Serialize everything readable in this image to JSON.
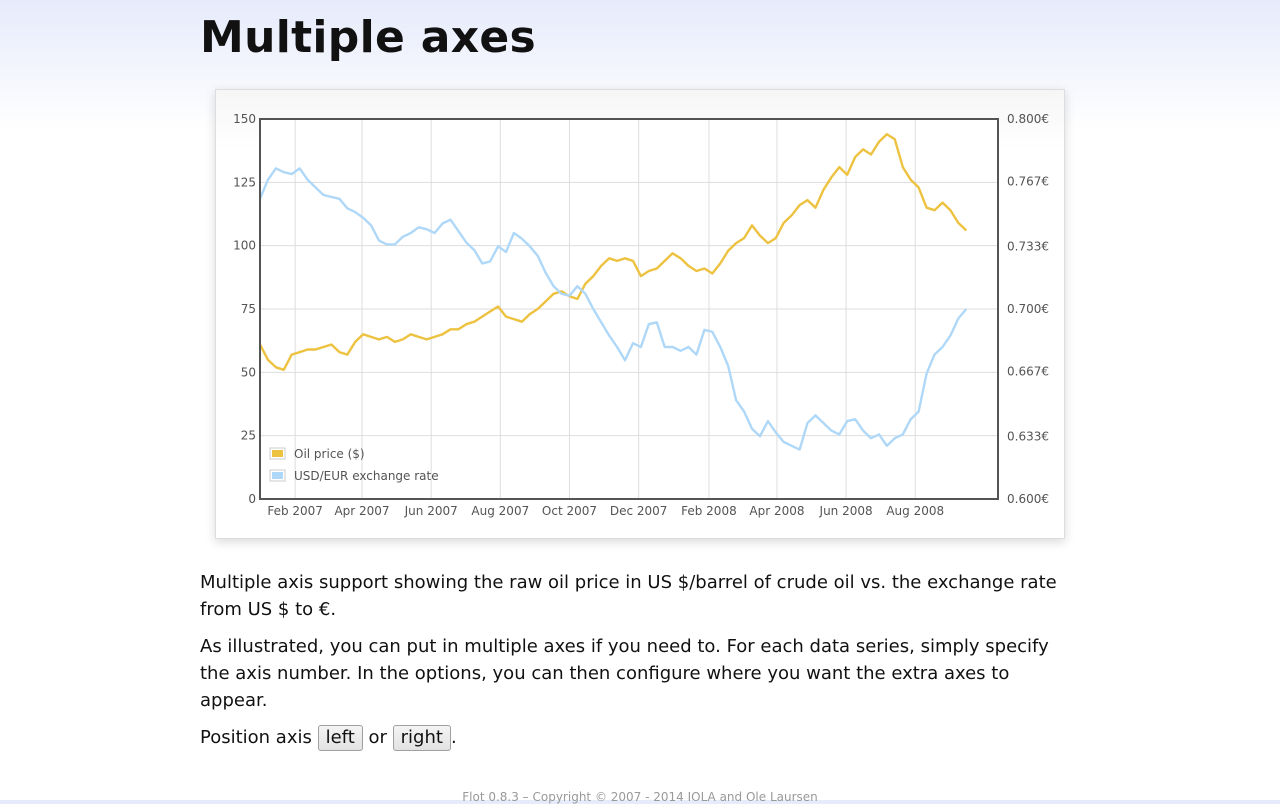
{
  "page": {
    "title": "Multiple axes",
    "para1": "Multiple axis support showing the raw oil price in US $/barrel of crude oil vs. the exchange rate from US $ to €.",
    "para2": "As illustrated, you can put in multiple axes if you need to. For each data series, simply specify the axis number. In the options, you can then configure where you want the extra axes to appear.",
    "position_prefix": "Position axis",
    "left_button": "left",
    "or_text": "or",
    "right_button": "right",
    "position_suffix": ".",
    "footer": "Flot 0.8.3 – Copyright © 2007 - 2014 IOLA and Ole Laursen"
  },
  "chart_data": {
    "type": "line",
    "x_type": "date",
    "xlim": [
      "2007-01-01",
      "2008-10-13"
    ],
    "x_ticks": [
      "2007-02-01",
      "2007-04-01",
      "2007-06-01",
      "2007-08-01",
      "2007-10-01",
      "2007-12-01",
      "2008-02-01",
      "2008-04-01",
      "2008-06-01",
      "2008-08-01"
    ],
    "x_tick_labels": [
      "Feb 2007",
      "Apr 2007",
      "Jun 2007",
      "Aug 2007",
      "Oct 2007",
      "Dec 2007",
      "Feb 2008",
      "Apr 2008",
      "Jun 2008",
      "Aug 2008"
    ],
    "y_left": {
      "min": 0,
      "max": 150,
      "ticks": [
        0,
        25,
        50,
        75,
        100,
        125,
        150
      ]
    },
    "y_right": {
      "min": 0.6,
      "max": 0.8,
      "ticks": [
        0.6,
        0.633,
        0.667,
        0.7,
        0.733,
        0.767,
        0.8
      ],
      "tick_labels": [
        "0.600€",
        "0.633€",
        "0.667€",
        "0.700€",
        "0.733€",
        "0.767€",
        "0.800€"
      ]
    },
    "grid": true,
    "legend_position": "bottom-left",
    "series": [
      {
        "name": "Oil price ($)",
        "color": "#edc240",
        "axis": "left",
        "points": [
          [
            "2007-01-01",
            61
          ],
          [
            "2007-01-08",
            55
          ],
          [
            "2007-01-15",
            52
          ],
          [
            "2007-01-22",
            51
          ],
          [
            "2007-01-29",
            57
          ],
          [
            "2007-02-05",
            58
          ],
          [
            "2007-02-12",
            59
          ],
          [
            "2007-02-19",
            59
          ],
          [
            "2007-02-26",
            60
          ],
          [
            "2007-03-05",
            61
          ],
          [
            "2007-03-12",
            58
          ],
          [
            "2007-03-19",
            57
          ],
          [
            "2007-03-26",
            62
          ],
          [
            "2007-04-02",
            65
          ],
          [
            "2007-04-09",
            64
          ],
          [
            "2007-04-16",
            63
          ],
          [
            "2007-04-23",
            64
          ],
          [
            "2007-04-30",
            62
          ],
          [
            "2007-05-07",
            63
          ],
          [
            "2007-05-14",
            65
          ],
          [
            "2007-05-21",
            64
          ],
          [
            "2007-05-28",
            63
          ],
          [
            "2007-06-04",
            64
          ],
          [
            "2007-06-11",
            65
          ],
          [
            "2007-06-18",
            67
          ],
          [
            "2007-06-25",
            67
          ],
          [
            "2007-07-02",
            69
          ],
          [
            "2007-07-09",
            70
          ],
          [
            "2007-07-16",
            72
          ],
          [
            "2007-07-23",
            74
          ],
          [
            "2007-07-30",
            76
          ],
          [
            "2007-08-06",
            72
          ],
          [
            "2007-08-13",
            71
          ],
          [
            "2007-08-20",
            70
          ],
          [
            "2007-08-27",
            73
          ],
          [
            "2007-09-03",
            75
          ],
          [
            "2007-09-10",
            78
          ],
          [
            "2007-09-17",
            81
          ],
          [
            "2007-09-24",
            82
          ],
          [
            "2007-10-01",
            80
          ],
          [
            "2007-10-08",
            79
          ],
          [
            "2007-10-15",
            85
          ],
          [
            "2007-10-22",
            88
          ],
          [
            "2007-10-29",
            92
          ],
          [
            "2007-11-05",
            95
          ],
          [
            "2007-11-12",
            94
          ],
          [
            "2007-11-19",
            95
          ],
          [
            "2007-11-26",
            94
          ],
          [
            "2007-12-03",
            88
          ],
          [
            "2007-12-10",
            90
          ],
          [
            "2007-12-17",
            91
          ],
          [
            "2007-12-24",
            94
          ],
          [
            "2007-12-31",
            97
          ],
          [
            "2008-01-07",
            95
          ],
          [
            "2008-01-14",
            92
          ],
          [
            "2008-01-21",
            90
          ],
          [
            "2008-01-28",
            91
          ],
          [
            "2008-02-04",
            89
          ],
          [
            "2008-02-11",
            93
          ],
          [
            "2008-02-18",
            98
          ],
          [
            "2008-02-25",
            101
          ],
          [
            "2008-03-03",
            103
          ],
          [
            "2008-03-10",
            108
          ],
          [
            "2008-03-17",
            104
          ],
          [
            "2008-03-24",
            101
          ],
          [
            "2008-03-31",
            103
          ],
          [
            "2008-04-07",
            109
          ],
          [
            "2008-04-14",
            112
          ],
          [
            "2008-04-21",
            116
          ],
          [
            "2008-04-28",
            118
          ],
          [
            "2008-05-05",
            115
          ],
          [
            "2008-05-12",
            122
          ],
          [
            "2008-05-19",
            127
          ],
          [
            "2008-05-26",
            131
          ],
          [
            "2008-06-02",
            128
          ],
          [
            "2008-06-09",
            135
          ],
          [
            "2008-06-16",
            138
          ],
          [
            "2008-06-23",
            136
          ],
          [
            "2008-06-30",
            141
          ],
          [
            "2008-07-07",
            144
          ],
          [
            "2008-07-14",
            142
          ],
          [
            "2008-07-21",
            131
          ],
          [
            "2008-07-28",
            126
          ],
          [
            "2008-08-04",
            123
          ],
          [
            "2008-08-11",
            115
          ],
          [
            "2008-08-18",
            114
          ],
          [
            "2008-08-25",
            117
          ],
          [
            "2008-09-01",
            114
          ],
          [
            "2008-09-08",
            109
          ],
          [
            "2008-09-15",
            106
          ]
        ]
      },
      {
        "name": "USD/EUR exchange rate",
        "color": "#afd8f8",
        "axis": "right",
        "points": [
          [
            "2007-01-01",
            0.758
          ],
          [
            "2007-01-08",
            0.768
          ],
          [
            "2007-01-15",
            0.774
          ],
          [
            "2007-01-22",
            0.772
          ],
          [
            "2007-01-29",
            0.771
          ],
          [
            "2007-02-05",
            0.774
          ],
          [
            "2007-02-12",
            0.768
          ],
          [
            "2007-02-19",
            0.764
          ],
          [
            "2007-02-26",
            0.76
          ],
          [
            "2007-03-05",
            0.759
          ],
          [
            "2007-03-12",
            0.758
          ],
          [
            "2007-03-19",
            0.753
          ],
          [
            "2007-03-26",
            0.751
          ],
          [
            "2007-04-02",
            0.748
          ],
          [
            "2007-04-09",
            0.744
          ],
          [
            "2007-04-16",
            0.736
          ],
          [
            "2007-04-23",
            0.734
          ],
          [
            "2007-04-30",
            0.734
          ],
          [
            "2007-05-07",
            0.738
          ],
          [
            "2007-05-14",
            0.74
          ],
          [
            "2007-05-21",
            0.743
          ],
          [
            "2007-05-28",
            0.742
          ],
          [
            "2007-06-04",
            0.74
          ],
          [
            "2007-06-11",
            0.745
          ],
          [
            "2007-06-18",
            0.747
          ],
          [
            "2007-06-25",
            0.741
          ],
          [
            "2007-07-02",
            0.735
          ],
          [
            "2007-07-09",
            0.731
          ],
          [
            "2007-07-16",
            0.724
          ],
          [
            "2007-07-23",
            0.725
          ],
          [
            "2007-07-30",
            0.733
          ],
          [
            "2007-08-06",
            0.73
          ],
          [
            "2007-08-13",
            0.74
          ],
          [
            "2007-08-20",
            0.737
          ],
          [
            "2007-08-27",
            0.733
          ],
          [
            "2007-09-03",
            0.728
          ],
          [
            "2007-09-10",
            0.719
          ],
          [
            "2007-09-17",
            0.712
          ],
          [
            "2007-09-24",
            0.708
          ],
          [
            "2007-10-01",
            0.707
          ],
          [
            "2007-10-08",
            0.712
          ],
          [
            "2007-10-15",
            0.708
          ],
          [
            "2007-10-22",
            0.7
          ],
          [
            "2007-10-29",
            0.693
          ],
          [
            "2007-11-05",
            0.686
          ],
          [
            "2007-11-12",
            0.68
          ],
          [
            "2007-11-19",
            0.673
          ],
          [
            "2007-11-26",
            0.682
          ],
          [
            "2007-12-03",
            0.68
          ],
          [
            "2007-12-10",
            0.692
          ],
          [
            "2007-12-17",
            0.693
          ],
          [
            "2007-12-24",
            0.68
          ],
          [
            "2007-12-31",
            0.68
          ],
          [
            "2008-01-07",
            0.678
          ],
          [
            "2008-01-14",
            0.68
          ],
          [
            "2008-01-21",
            0.676
          ],
          [
            "2008-01-28",
            0.689
          ],
          [
            "2008-02-04",
            0.688
          ],
          [
            "2008-02-11",
            0.68
          ],
          [
            "2008-02-18",
            0.67
          ],
          [
            "2008-02-25",
            0.652
          ],
          [
            "2008-03-03",
            0.646
          ],
          [
            "2008-03-10",
            0.637
          ],
          [
            "2008-03-17",
            0.633
          ],
          [
            "2008-03-24",
            0.641
          ],
          [
            "2008-03-31",
            0.635
          ],
          [
            "2008-04-07",
            0.63
          ],
          [
            "2008-04-14",
            0.628
          ],
          [
            "2008-04-21",
            0.626
          ],
          [
            "2008-04-28",
            0.64
          ],
          [
            "2008-05-05",
            0.644
          ],
          [
            "2008-05-12",
            0.64
          ],
          [
            "2008-05-19",
            0.636
          ],
          [
            "2008-05-26",
            0.634
          ],
          [
            "2008-06-02",
            0.641
          ],
          [
            "2008-06-09",
            0.642
          ],
          [
            "2008-06-16",
            0.636
          ],
          [
            "2008-06-23",
            0.632
          ],
          [
            "2008-06-30",
            0.634
          ],
          [
            "2008-07-07",
            0.628
          ],
          [
            "2008-07-14",
            0.632
          ],
          [
            "2008-07-21",
            0.634
          ],
          [
            "2008-07-28",
            0.642
          ],
          [
            "2008-08-04",
            0.646
          ],
          [
            "2008-08-11",
            0.666
          ],
          [
            "2008-08-18",
            0.676
          ],
          [
            "2008-08-25",
            0.68
          ],
          [
            "2008-09-01",
            0.686
          ],
          [
            "2008-09-08",
            0.695
          ],
          [
            "2008-09-15",
            0.7
          ]
        ]
      }
    ]
  }
}
